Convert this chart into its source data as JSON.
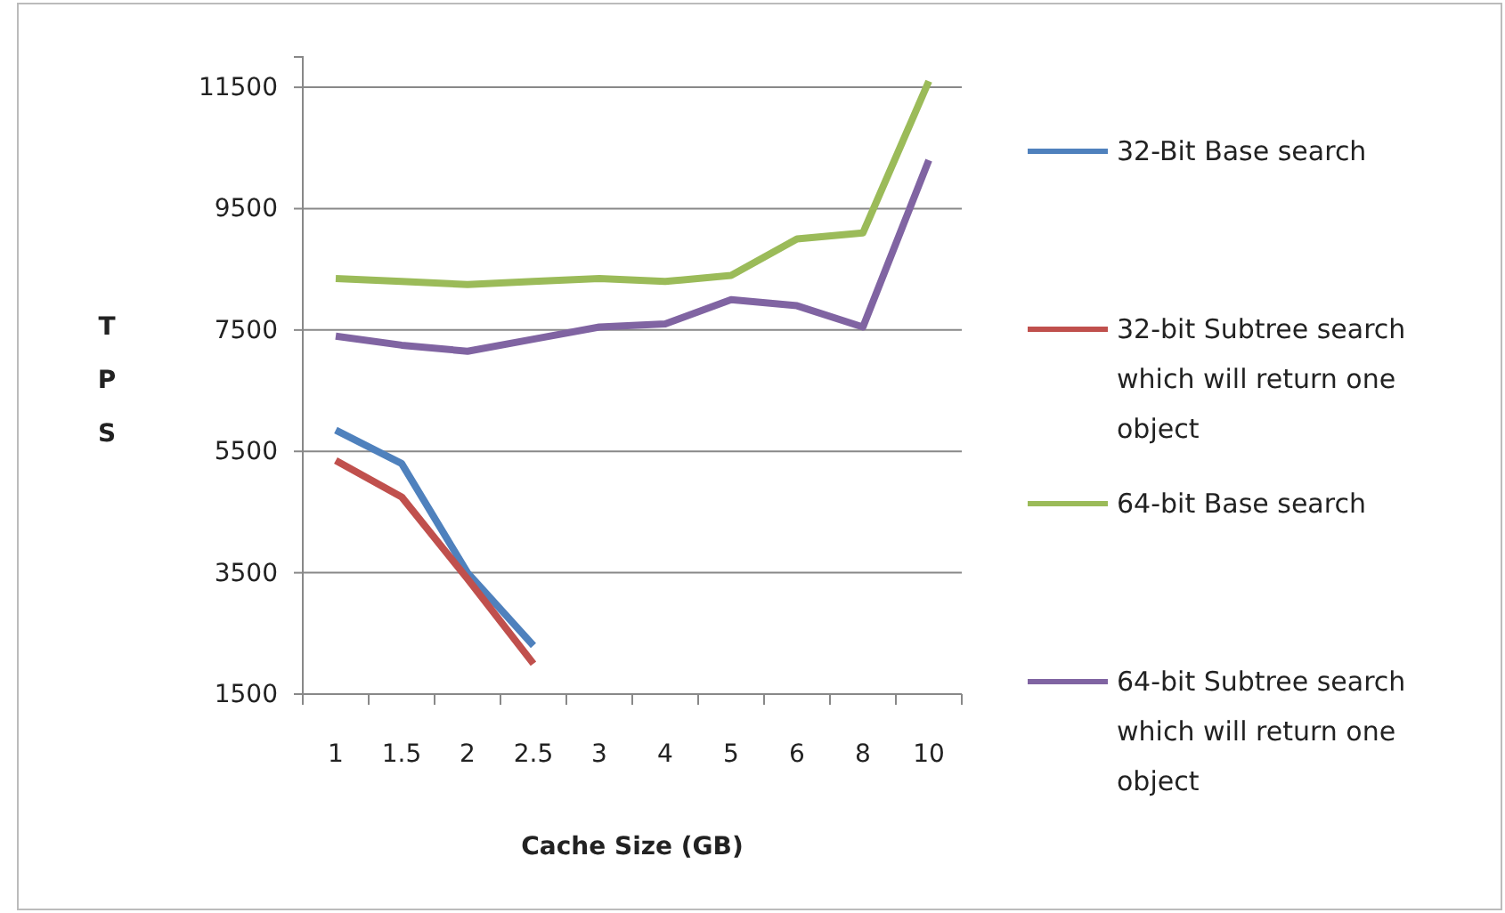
{
  "chart_data": {
    "type": "line",
    "xlabel": "Cache Size (GB)",
    "ylabel": "TPS",
    "categories": [
      "1",
      "1.5",
      "2",
      "2.5",
      "3",
      "4",
      "5",
      "6",
      "8",
      "10"
    ],
    "series": [
      {
        "name": "32-Bit Base  search",
        "color": "#4f81bd",
        "values": [
          5850,
          5300,
          3500,
          2300,
          null,
          null,
          null,
          null,
          null,
          null
        ]
      },
      {
        "name": "32-bit Subtree search which will  return one object",
        "color": "#c0504d",
        "values": [
          5350,
          4750,
          3400,
          2000,
          null,
          null,
          null,
          null,
          null,
          null
        ]
      },
      {
        "name": "64-bit Base  search",
        "color": "#9bbb59",
        "values": [
          8350,
          8300,
          8250,
          8300,
          8350,
          8300,
          8400,
          9000,
          9100,
          11600
        ]
      },
      {
        "name": "64-bit Subtree search which will  return one object",
        "color": "#8064a2",
        "values": [
          7400,
          7250,
          7150,
          7350,
          7550,
          7600,
          8000,
          7900,
          7550,
          10300
        ]
      }
    ],
    "ylim": [
      1500,
      12000
    ],
    "yticks": [
      1500,
      3500,
      5500,
      7500,
      9500,
      11500
    ],
    "grid": "y",
    "legend": "right",
    "marker": "none",
    "line_style": "solid"
  }
}
